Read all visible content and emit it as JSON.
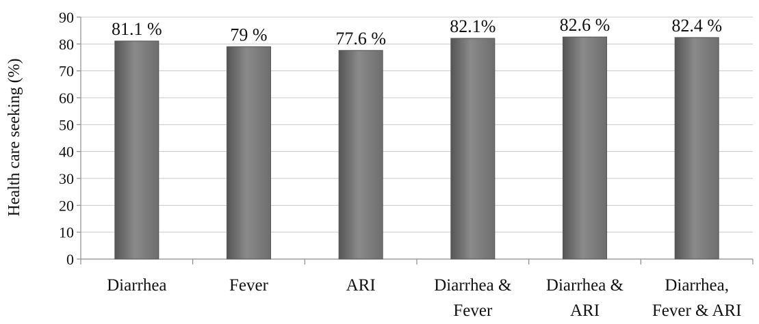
{
  "chart_data": {
    "type": "bar",
    "categories": [
      [
        "Diarrhea"
      ],
      [
        "Fever"
      ],
      [
        "ARI"
      ],
      [
        "Diarrhea &",
        "Fever"
      ],
      [
        "Diarrhea &",
        "ARI"
      ],
      [
        "Diarrhea,",
        "Fever & ARI"
      ]
    ],
    "values": [
      81.1,
      79,
      77.6,
      82.1,
      82.6,
      82.4
    ],
    "data_labels": [
      "81.1 %",
      "79 %",
      "77.6 %",
      "82.1%",
      "82.6 %",
      "82.4 %"
    ],
    "title": "",
    "xlabel": "",
    "ylabel": "Health care seeking (%)",
    "ylim": [
      0,
      90
    ],
    "yticks": [
      0,
      10,
      20,
      30,
      40,
      50,
      60,
      70,
      80,
      90
    ],
    "grid": "horizontal",
    "legend": "none",
    "bar_color": "#6e6e6e",
    "bar_color_light": "#8a8a8a",
    "bar_color_dark": "#555555"
  }
}
